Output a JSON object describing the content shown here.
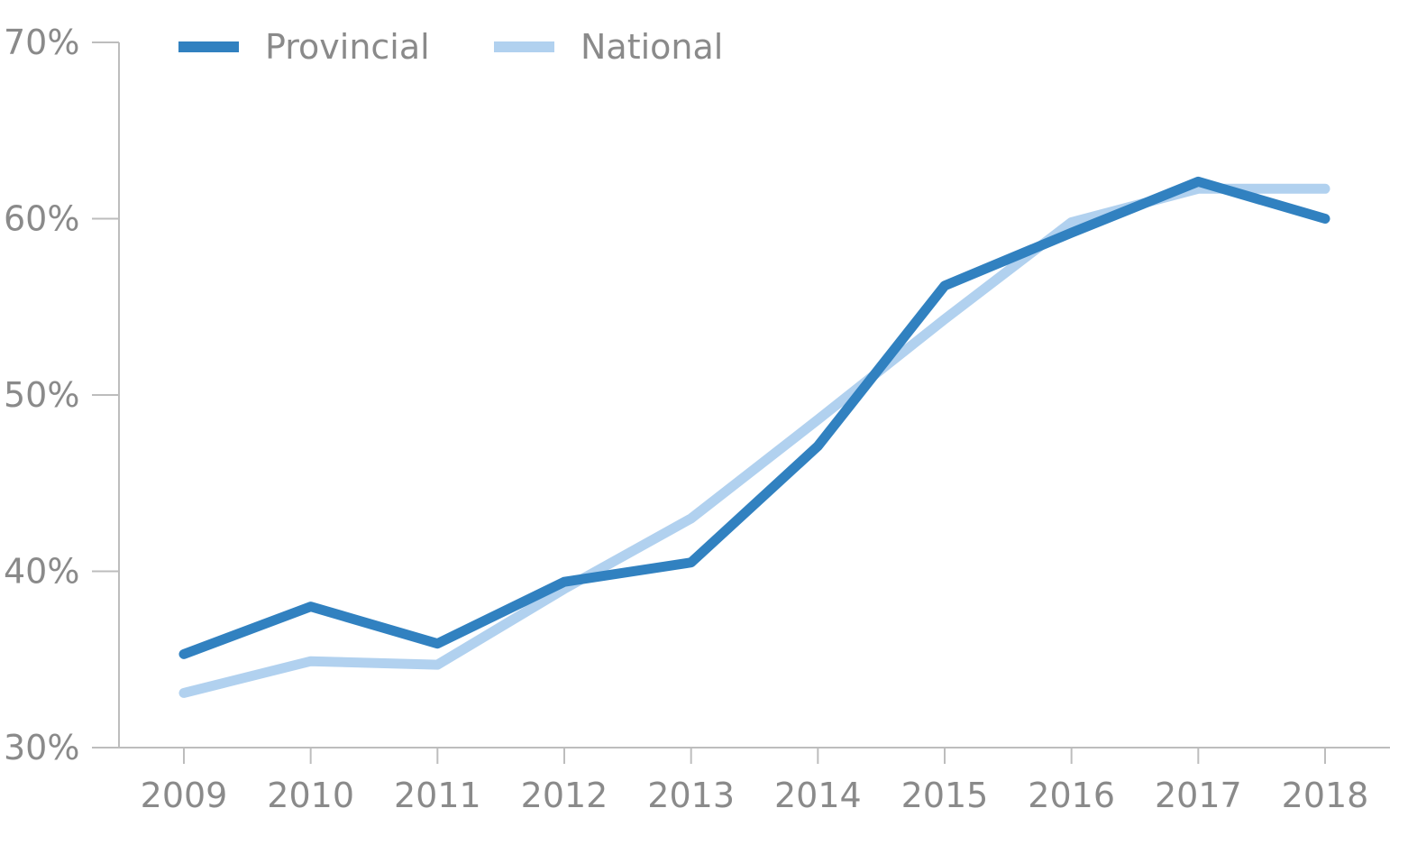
{
  "chart_data": {
    "type": "line",
    "title": "",
    "xlabel": "",
    "ylabel": "",
    "x": [
      "2009",
      "2010",
      "2011",
      "2012",
      "2013",
      "2014",
      "2015",
      "2016",
      "2017",
      "2018"
    ],
    "ylim": [
      30,
      70
    ],
    "yticks": [
      30,
      40,
      50,
      60,
      70
    ],
    "ytick_labels": [
      "30%",
      "40%",
      "50%",
      "60%",
      "70%"
    ],
    "grid": false,
    "legend_position": "top-left",
    "series": [
      {
        "name": "National",
        "color": "#b1d1ef",
        "values": [
          33.1,
          34.9,
          34.7,
          39.0,
          43.0,
          48.6,
          54.3,
          59.8,
          61.7,
          61.7
        ]
      },
      {
        "name": "Provincial",
        "color": "#3181c0",
        "values": [
          35.3,
          38.0,
          35.9,
          39.4,
          40.5,
          47.1,
          56.2,
          59.2,
          62.1,
          60.0
        ]
      }
    ],
    "legend": [
      {
        "label": "Provincial",
        "color": "#3181c0"
      },
      {
        "label": "National",
        "color": "#b1d1ef"
      }
    ]
  }
}
